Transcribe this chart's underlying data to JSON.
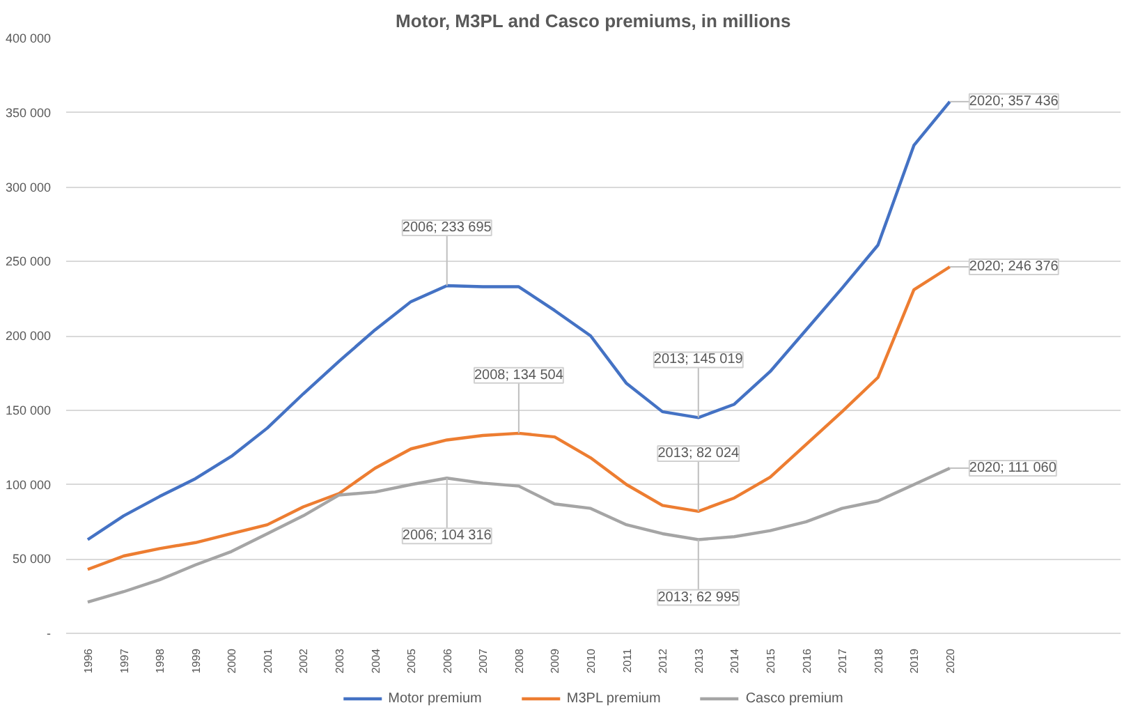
{
  "chart_data": {
    "type": "line",
    "title": "Motor, M3PL and Casco premiums, in millions",
    "categories": [
      "1996",
      "1997",
      "1998",
      "1999",
      "2000",
      "2001",
      "2002",
      "2003",
      "2004",
      "2005",
      "2006",
      "2007",
      "2008",
      "2009",
      "2010",
      "2011",
      "2012",
      "2013",
      "2014",
      "2015",
      "2016",
      "2017",
      "2018",
      "2019",
      "2020"
    ],
    "ylim": [
      0,
      400000
    ],
    "yticks": [
      {
        "value": 0,
        "label": "-"
      },
      {
        "value": 50000,
        "label": "50 000"
      },
      {
        "value": 100000,
        "label": "100 000"
      },
      {
        "value": 150000,
        "label": "150 000"
      },
      {
        "value": 200000,
        "label": "200 000"
      },
      {
        "value": 250000,
        "label": "250 000"
      },
      {
        "value": 300000,
        "label": "300 000"
      },
      {
        "value": 350000,
        "label": "350 000"
      },
      {
        "value": 400000,
        "label": "400 000"
      }
    ],
    "grid": "y",
    "legend": "bottom",
    "series": [
      {
        "name": "Motor premium",
        "color": "#4472c4",
        "values": [
          63000,
          79000,
          92000,
          104000,
          119000,
          138000,
          161000,
          183000,
          204000,
          223000,
          233695,
          233000,
          233000,
          217000,
          200000,
          168000,
          149000,
          145019,
          154000,
          176000,
          204000,
          232000,
          261000,
          328000,
          357436
        ],
        "value_labels": [
          null,
          null,
          null,
          null,
          null,
          null,
          null,
          null,
          null,
          null,
          "2006; 233 695",
          null,
          null,
          null,
          null,
          null,
          null,
          "2013; 145 019",
          null,
          null,
          null,
          null,
          null,
          null,
          "2020; 357 436"
        ]
      },
      {
        "name": "M3PL premium",
        "color": "#ed7d31",
        "values": [
          43000,
          52000,
          57000,
          61000,
          67000,
          73000,
          85000,
          94000,
          111000,
          124000,
          130000,
          133000,
          134504,
          132000,
          118000,
          100000,
          86000,
          82024,
          91000,
          105000,
          127000,
          149000,
          172000,
          231000,
          246376
        ],
        "value_labels": [
          null,
          null,
          null,
          null,
          null,
          null,
          null,
          null,
          null,
          null,
          null,
          null,
          "2008; 134 504",
          null,
          null,
          null,
          null,
          "2013; 82 024",
          null,
          null,
          null,
          null,
          null,
          null,
          "2020; 246 376"
        ]
      },
      {
        "name": "Casco premium",
        "color": "#a5a5a5",
        "values": [
          21000,
          28000,
          36000,
          46000,
          55000,
          67000,
          79000,
          93000,
          95000,
          100000,
          104316,
          101000,
          99000,
          87000,
          84000,
          73000,
          67000,
          62995,
          65000,
          69000,
          75000,
          84000,
          89000,
          100000,
          111060
        ],
        "value_labels": [
          null,
          null,
          null,
          null,
          null,
          null,
          null,
          null,
          null,
          null,
          "2006; 104 316",
          null,
          null,
          null,
          null,
          null,
          null,
          "2013; 62 995",
          null,
          null,
          null,
          null,
          null,
          null,
          "2020; 111 060"
        ]
      }
    ]
  }
}
